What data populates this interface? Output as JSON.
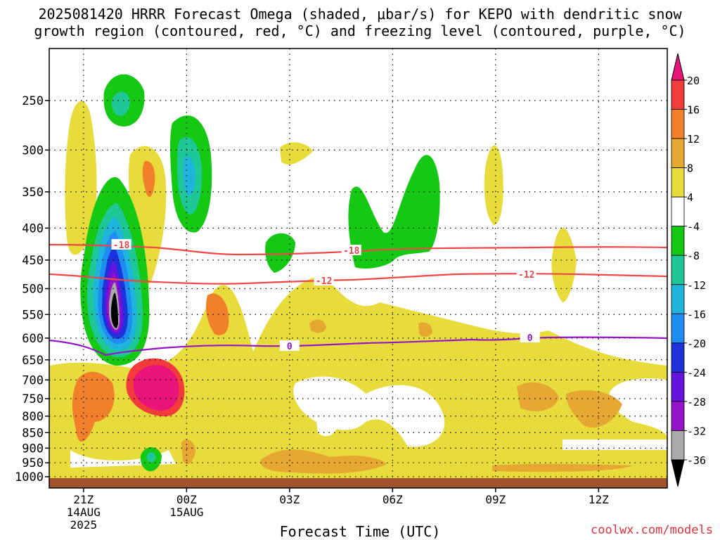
{
  "chart_data": {
    "type": "contour",
    "title_line1": "2025081420 HRRR Forecast Omega (shaded, μbar/s) for KEPO with dendritic snow",
    "title_line2": "growth region (contoured, red, °C) and freezing level (contoured, purple, °C)",
    "xlabel": "Forecast Time (UTC)",
    "credit": "coolwx.com/models",
    "y_ticks": [
      "250",
      "300",
      "350",
      "400",
      "450",
      "500",
      "550",
      "600",
      "650",
      "700",
      "750",
      "800",
      "850",
      "900",
      "950",
      "1000"
    ],
    "x_ticks": [
      {
        "hour": 21,
        "label": "21Z",
        "sub1": "14AUG",
        "sub2": "2025"
      },
      {
        "hour": 24,
        "label": "00Z",
        "sub1": "15AUG",
        "sub2": ""
      },
      {
        "hour": 27,
        "label": "03Z",
        "sub1": "",
        "sub2": ""
      },
      {
        "hour": 30,
        "label": "06Z",
        "sub1": "",
        "sub2": ""
      },
      {
        "hour": 33,
        "label": "09Z",
        "sub1": "",
        "sub2": ""
      },
      {
        "hour": 36,
        "label": "12Z",
        "sub1": "",
        "sub2": ""
      }
    ],
    "x_range_hours": [
      20,
      38
    ],
    "y_range_hPa": [
      200,
      1025
    ],
    "colorbar": {
      "labels": [
        "20",
        "16",
        "12",
        "8",
        "4",
        "-4",
        "-8",
        "-12",
        "-16",
        "-20",
        "-24",
        "-28",
        "-32",
        "-36"
      ],
      "colors": [
        "#e8147a",
        "#f23c3c",
        "#f0802a",
        "#e6a832",
        "#e8dc3c",
        "#ffffff",
        "#14c814",
        "#1ec896",
        "#1eb4dc",
        "#1e8cf0",
        "#1e32dc",
        "#6414dc",
        "#9614c8",
        "#aaaaaa",
        "#000000"
      ]
    },
    "contours": [
      {
        "name": "-18",
        "color": "#f04646",
        "labels_at_hours": [
          22.1,
          28.8
        ]
      },
      {
        "name": "-12",
        "color": "#f04646",
        "labels_at_hours": [
          28.0,
          33.9
        ]
      },
      {
        "name": "0",
        "color": "#9614c8",
        "labels_at_hours": [
          27.0,
          34.0
        ]
      }
    ],
    "terrain_color": "#a0522d"
  }
}
